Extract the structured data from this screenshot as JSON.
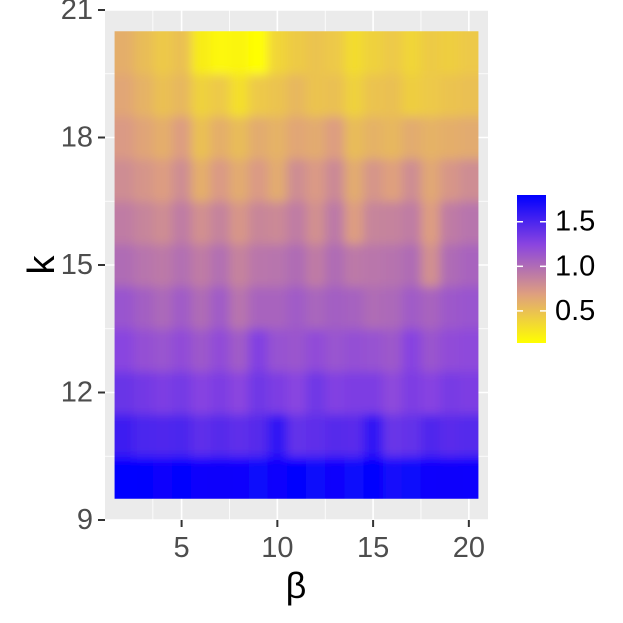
{
  "chart_data": {
    "type": "heatmap",
    "title": "",
    "xlabel": "β",
    "ylabel": "k",
    "xlim": [
      1,
      21
    ],
    "ylim": [
      9,
      21
    ],
    "x_ticks": [
      5,
      10,
      15,
      20
    ],
    "y_ticks": [
      9,
      12,
      15,
      18,
      21
    ],
    "x": [
      2,
      3,
      4,
      5,
      6,
      7,
      8,
      9,
      10,
      11,
      12,
      13,
      14,
      15,
      16,
      17,
      18,
      19,
      20
    ],
    "y": [
      10,
      11,
      12,
      13,
      14,
      15,
      16,
      17,
      18,
      19,
      20
    ],
    "values": [
      [
        1.8,
        1.78,
        1.76,
        1.78,
        1.76,
        1.75,
        1.77,
        1.74,
        1.76,
        1.78,
        1.73,
        1.76,
        1.74,
        1.78,
        1.72,
        1.74,
        1.76,
        1.75,
        1.77
      ],
      [
        1.55,
        1.5,
        1.48,
        1.5,
        1.42,
        1.45,
        1.42,
        1.45,
        1.62,
        1.4,
        1.42,
        1.45,
        1.44,
        1.62,
        1.38,
        1.4,
        1.48,
        1.44,
        1.46
      ],
      [
        1.38,
        1.34,
        1.3,
        1.33,
        1.26,
        1.3,
        1.24,
        1.35,
        1.3,
        1.25,
        1.35,
        1.28,
        1.3,
        1.3,
        1.22,
        1.3,
        1.26,
        1.32,
        1.3
      ],
      [
        1.25,
        1.18,
        1.15,
        1.2,
        1.12,
        1.2,
        1.1,
        1.28,
        1.16,
        1.14,
        1.2,
        1.15,
        1.18,
        1.16,
        1.12,
        1.26,
        1.14,
        1.2,
        1.22
      ],
      [
        1.15,
        1.08,
        1.02,
        1.1,
        1.0,
        1.1,
        0.95,
        1.05,
        1.05,
        1.1,
        1.04,
        1.08,
        1.06,
        1.0,
        1.02,
        1.1,
        1.05,
        1.12,
        1.15
      ],
      [
        1.0,
        0.95,
        0.92,
        0.98,
        0.9,
        0.98,
        0.86,
        0.94,
        0.95,
        1.0,
        0.9,
        1.0,
        0.92,
        0.94,
        0.96,
        1.0,
        0.78,
        1.0,
        1.05
      ],
      [
        0.9,
        0.85,
        0.8,
        0.9,
        0.78,
        0.86,
        0.74,
        0.84,
        0.82,
        0.9,
        0.78,
        0.92,
        0.7,
        0.85,
        0.86,
        0.9,
        0.7,
        0.9,
        0.95
      ],
      [
        0.8,
        0.75,
        0.7,
        0.8,
        0.6,
        0.72,
        0.62,
        0.72,
        0.62,
        0.8,
        0.72,
        0.82,
        0.62,
        0.75,
        0.68,
        0.8,
        0.64,
        0.74,
        0.8
      ],
      [
        0.72,
        0.66,
        0.6,
        0.7,
        0.5,
        0.6,
        0.52,
        0.62,
        0.58,
        0.65,
        0.62,
        0.7,
        0.52,
        0.58,
        0.55,
        0.62,
        0.58,
        0.6,
        0.62
      ],
      [
        0.65,
        0.58,
        0.5,
        0.55,
        0.4,
        0.45,
        0.32,
        0.45,
        0.48,
        0.55,
        0.48,
        0.5,
        0.4,
        0.48,
        0.5,
        0.42,
        0.45,
        0.48,
        0.5
      ],
      [
        0.6,
        0.52,
        0.45,
        0.5,
        0.25,
        0.18,
        0.2,
        0.14,
        0.38,
        0.44,
        0.48,
        0.45,
        0.34,
        0.4,
        0.45,
        0.38,
        0.44,
        0.42,
        0.45
      ]
    ],
    "colorbar": {
      "ticks": [
        0.5,
        1.0,
        1.5
      ],
      "tick_labels": [
        "0.5",
        "1.0",
        "1.5"
      ],
      "range": [
        0.14,
        1.8
      ],
      "colors": [
        "#FFFF00",
        "#DE9E80",
        "#8A44E0",
        "#0000FF"
      ]
    },
    "grid": true,
    "legend_position": "right",
    "colors": {
      "panel_bg": "#EBEBEB",
      "grid": "#FFFFFF",
      "axis_text": "#4D4D4D",
      "axis_title": "#000000"
    }
  }
}
